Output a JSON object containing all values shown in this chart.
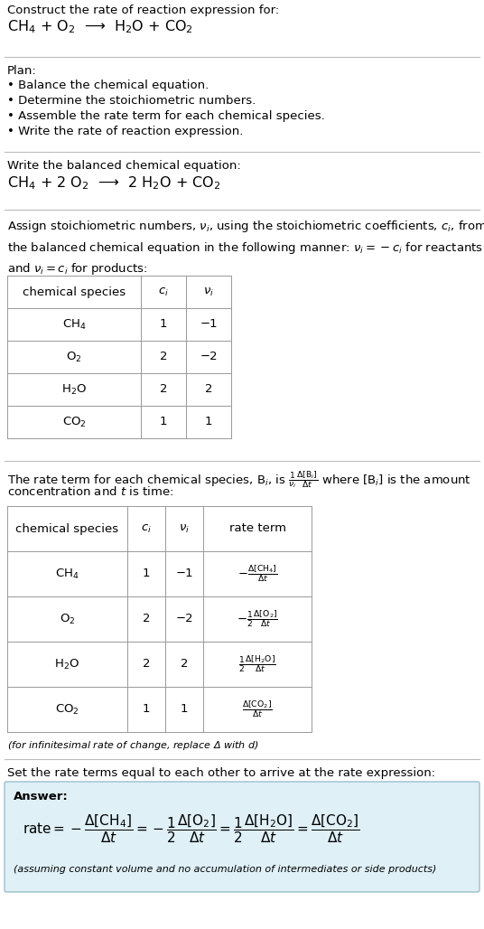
{
  "bg_color": "#ffffff",
  "text_color": "#000000",
  "title_line1": "Construct the rate of reaction expression for:",
  "reaction_unbalanced": "CH$_4$ + O$_2$  ⟶  H$_2$O + CO$_2$",
  "plan_header": "Plan:",
  "plan_items": [
    "• Balance the chemical equation.",
    "• Determine the stoichiometric numbers.",
    "• Assemble the rate term for each chemical species.",
    "• Write the rate of reaction expression."
  ],
  "balanced_header": "Write the balanced chemical equation:",
  "reaction_balanced": "CH$_4$ + 2 O$_2$  ⟶  2 H$_2$O + CO$_2$",
  "stoich_para": "Assign stoichiometric numbers, $\\nu_i$, using the stoichiometric coefficients, $c_i$, from\nthe balanced chemical equation in the following manner: $\\nu_i = -c_i$ for reactants\nand $\\nu_i = c_i$ for products:",
  "table1_cols": [
    "chemical species",
    "$c_i$",
    "$\\nu_i$"
  ],
  "table1_rows": [
    [
      "CH$_4$",
      "1",
      "−1"
    ],
    [
      "O$_2$",
      "2",
      "−2"
    ],
    [
      "H$_2$O",
      "2",
      "2"
    ],
    [
      "CO$_2$",
      "1",
      "1"
    ]
  ],
  "rate_para_a": "The rate term for each chemical species, B$_i$, is $\\frac{1}{\\nu_i}\\frac{\\Delta[\\mathrm{B}_i]}{\\Delta t}$ where [B$_i$] is the amount",
  "rate_para_b": "concentration and $t$ is time:",
  "table2_cols": [
    "chemical species",
    "$c_i$",
    "$\\nu_i$",
    "rate term"
  ],
  "table2_rows": [
    [
      "CH$_4$",
      "1",
      "−1",
      "$-\\frac{\\Delta[\\mathrm{CH_4}]}{\\Delta t}$"
    ],
    [
      "O$_2$",
      "2",
      "−2",
      "$-\\frac{1}{2}\\frac{\\Delta[\\mathrm{O_2}]}{\\Delta t}$"
    ],
    [
      "H$_2$O",
      "2",
      "2",
      "$\\frac{1}{2}\\frac{\\Delta[\\mathrm{H_2O}]}{\\Delta t}$"
    ],
    [
      "CO$_2$",
      "1",
      "1",
      "$\\frac{\\Delta[\\mathrm{CO_2}]}{\\Delta t}$"
    ]
  ],
  "infinitesimal_note": "(for infinitesimal rate of change, replace Δ with $d$)",
  "set_equal_header": "Set the rate terms equal to each other to arrive at the rate expression:",
  "answer_box_color": "#dff0f7",
  "answer_border_color": "#9bbfce",
  "answer_label": "Answer:",
  "answer_rate": "$\\mathrm{rate} = -\\dfrac{\\Delta[\\mathrm{CH_4}]}{\\Delta t} = -\\dfrac{1}{2}\\dfrac{\\Delta[\\mathrm{O_2}]}{\\Delta t} = \\dfrac{1}{2}\\dfrac{\\Delta[\\mathrm{H_2O}]}{\\Delta t} = \\dfrac{\\Delta[\\mathrm{CO_2}]}{\\Delta t}$",
  "answer_note": "(assuming constant volume and no accumulation of intermediates or side products)"
}
